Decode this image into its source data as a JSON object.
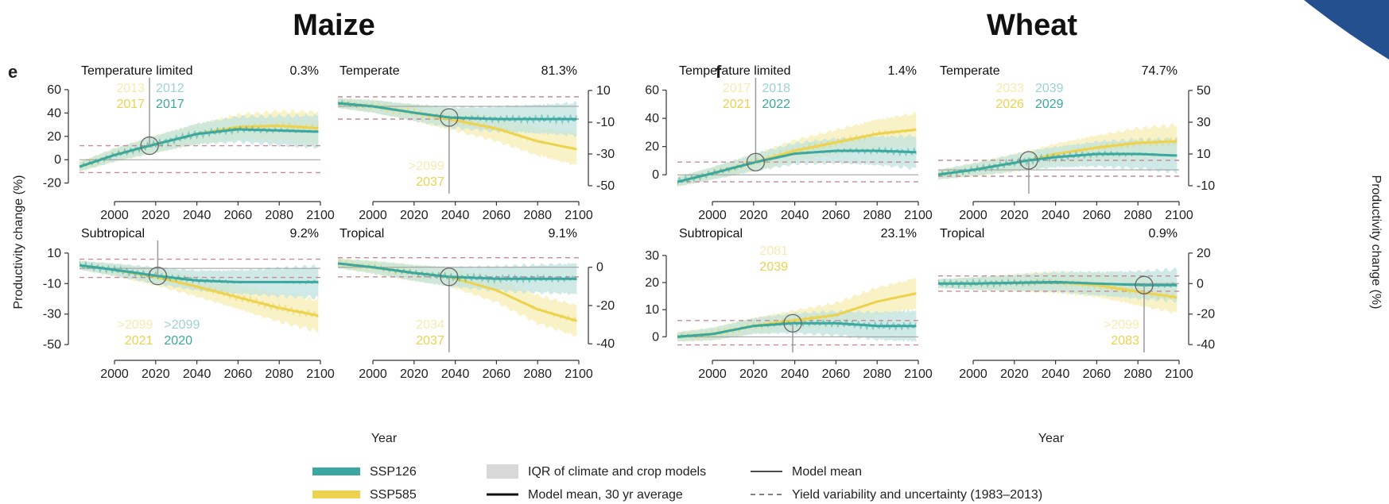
{
  "headings": {
    "maize": "Maize",
    "wheat": "Wheat"
  },
  "panel_letters": {
    "maize": "e",
    "wheat": "f"
  },
  "axis": {
    "ylabel_left": "Productivity change (%)",
    "ylabel_right": "Productivity change (%)",
    "xlabel": "Year"
  },
  "legend": {
    "ssp126": "SSP126",
    "ssp585": "SSP585",
    "iqr": "IQR of climate and crop models",
    "mean30": "Model mean, 30 yr average",
    "mean": "Model mean",
    "variability": "Yield variability and uncertainty (1983–2013)"
  },
  "colors": {
    "ssp126": "#3aa8a0",
    "ssp585": "#ecd24e",
    "ssp126_fill": "#bfe3dd",
    "ssp585_fill": "#f7edb4",
    "iqr": "#d8d8d8",
    "dashed": "#c48c95",
    "corner_shape": "#24508f"
  },
  "chart_data": [
    {
      "type": "line",
      "crop": "Maize",
      "zone": "Temperature limited",
      "share": "0.3%",
      "x_ticks": [
        "2000",
        "2020",
        "2040",
        "2060",
        "2080",
        "2100"
      ],
      "y_ticks": [
        "-20",
        "0",
        "20",
        "40",
        "60"
      ],
      "y_side": "left",
      "xlim": [
        1983,
        2100
      ],
      "ylim": [
        -25,
        62
      ],
      "var_band": [
        -11,
        12
      ],
      "emergence": {
        "ssp585_faint": "2013",
        "ssp126_faint": "2012",
        "ssp585": "2017",
        "ssp126": "2017",
        "circle_year": 2017
      },
      "series": [
        {
          "name": "SSP126",
          "x": [
            1983,
            2000,
            2017,
            2040,
            2060,
            2080,
            2099
          ],
          "y": [
            -6,
            4,
            12,
            22,
            26,
            25,
            24
          ]
        },
        {
          "name": "SSP585",
          "x": [
            1983,
            2000,
            2017,
            2040,
            2060,
            2080,
            2099
          ],
          "y": [
            -6,
            4,
            12,
            22,
            28,
            29,
            27
          ]
        }
      ]
    },
    {
      "type": "line",
      "crop": "Maize",
      "zone": "Temperate",
      "share": "81.3%",
      "x_ticks": [
        "2000",
        "2020",
        "2040",
        "2060",
        "2080",
        "2100"
      ],
      "y_ticks": [
        "-50",
        "-30",
        "-10",
        "10"
      ],
      "y_side": "right",
      "xlim": [
        1983,
        2100
      ],
      "ylim": [
        -52,
        12
      ],
      "var_band": [
        -8,
        6
      ],
      "emergence": {
        "ssp585_faint": ">2099",
        "ssp126_faint": "",
        "ssp585": "2037",
        "ssp126": "",
        "circle_year": 2037
      },
      "series": [
        {
          "name": "SSP126",
          "x": [
            1983,
            2000,
            2020,
            2037,
            2060,
            2080,
            2099
          ],
          "y": [
            2,
            0,
            -4,
            -7,
            -8,
            -8,
            -8
          ]
        },
        {
          "name": "SSP585",
          "x": [
            1983,
            2000,
            2020,
            2037,
            2060,
            2080,
            2099
          ],
          "y": [
            2,
            0,
            -4,
            -8,
            -14,
            -22,
            -27
          ]
        }
      ]
    },
    {
      "type": "line",
      "crop": "Maize",
      "zone": "Subtropical",
      "share": "9.2%",
      "x_ticks": [
        "2000",
        "2020",
        "2040",
        "2060",
        "2080",
        "2100"
      ],
      "y_ticks": [
        "-50",
        "-30",
        "-10",
        "10"
      ],
      "y_side": "left",
      "xlim": [
        1983,
        2100
      ],
      "ylim": [
        -52,
        12
      ],
      "var_band": [
        -6,
        6
      ],
      "emergence": {
        "ssp585_faint": ">2099",
        "ssp126_faint": ">2099",
        "ssp585": "2021",
        "ssp126": "2020",
        "circle_year": 2021
      },
      "series": [
        {
          "name": "SSP126",
          "x": [
            1983,
            2000,
            2021,
            2040,
            2060,
            2080,
            2099
          ],
          "y": [
            2,
            -1,
            -5,
            -8,
            -9,
            -9,
            -9
          ]
        },
        {
          "name": "SSP585",
          "x": [
            1983,
            2000,
            2021,
            2040,
            2060,
            2080,
            2099
          ],
          "y": [
            2,
            -1,
            -6,
            -12,
            -19,
            -26,
            -31
          ]
        }
      ]
    },
    {
      "type": "line",
      "crop": "Maize",
      "zone": "Tropical",
      "share": "9.1%",
      "x_ticks": [
        "2000",
        "2020",
        "2040",
        "2060",
        "2080",
        "2100"
      ],
      "y_ticks": [
        "-40",
        "-20",
        "0"
      ],
      "y_side": "right",
      "xlim": [
        1983,
        2100
      ],
      "ylim": [
        -42,
        9
      ],
      "var_band": [
        -5,
        5
      ],
      "emergence": {
        "ssp585_faint": "2034",
        "ssp126_faint": "",
        "ssp585": "2037",
        "ssp126": "",
        "circle_year": 2037
      },
      "series": [
        {
          "name": "SSP126",
          "x": [
            1983,
            2000,
            2020,
            2037,
            2060,
            2080,
            2099
          ],
          "y": [
            2,
            0,
            -3,
            -5,
            -6,
            -6,
            -6
          ]
        },
        {
          "name": "SSP585",
          "x": [
            1983,
            2000,
            2020,
            2037,
            2060,
            2080,
            2099
          ],
          "y": [
            2,
            0,
            -3,
            -5,
            -12,
            -22,
            -28
          ]
        }
      ]
    },
    {
      "type": "line",
      "crop": "Wheat",
      "zone": "Temperature limited",
      "share": "1.4%",
      "x_ticks": [
        "2000",
        "2020",
        "2040",
        "2060",
        "2080",
        "2100"
      ],
      "y_ticks": [
        "0",
        "20",
        "40",
        "60"
      ],
      "y_side": "left",
      "xlim": [
        1983,
        2100
      ],
      "ylim": [
        -10,
        62
      ],
      "var_band": [
        -5,
        9
      ],
      "emergence": {
        "ssp585_faint": "2017",
        "ssp126_faint": "2018",
        "ssp585": "2021",
        "ssp126": "2022",
        "circle_year": 2021
      },
      "series": [
        {
          "name": "SSP126",
          "x": [
            1983,
            2000,
            2021,
            2040,
            2060,
            2080,
            2099
          ],
          "y": [
            -5,
            1,
            9,
            15,
            17,
            17,
            16
          ]
        },
        {
          "name": "SSP585",
          "x": [
            1983,
            2000,
            2021,
            2040,
            2060,
            2080,
            2099
          ],
          "y": [
            -5,
            1,
            9,
            17,
            23,
            29,
            32
          ]
        }
      ]
    },
    {
      "type": "line",
      "crop": "Wheat",
      "zone": "Temperate",
      "share": "74.7%",
      "x_ticks": [
        "2000",
        "2020",
        "2040",
        "2060",
        "2080",
        "2100"
      ],
      "y_ticks": [
        "-10",
        "10",
        "30",
        "50"
      ],
      "y_side": "right",
      "xlim": [
        1983,
        2100
      ],
      "ylim": [
        -12,
        52
      ],
      "var_band": [
        -4,
        6
      ],
      "emergence": {
        "ssp585_faint": "2033",
        "ssp126_faint": "2039",
        "ssp585": "2026",
        "ssp126": "2029",
        "circle_year": 2027
      },
      "series": [
        {
          "name": "SSP126",
          "x": [
            1983,
            2000,
            2027,
            2040,
            2060,
            2080,
            2099
          ],
          "y": [
            -3,
            0,
            6,
            8,
            10,
            10,
            9
          ]
        },
        {
          "name": "SSP585",
          "x": [
            1983,
            2000,
            2027,
            2040,
            2060,
            2080,
            2099
          ],
          "y": [
            -3,
            0,
            6,
            10,
            14,
            17,
            18
          ]
        }
      ]
    },
    {
      "type": "line",
      "crop": "Wheat",
      "zone": "Subtropical",
      "share": "23.1%",
      "x_ticks": [
        "2000",
        "2020",
        "2040",
        "2060",
        "2080",
        "2100"
      ],
      "y_ticks": [
        "0",
        "10",
        "20",
        "30"
      ],
      "y_side": "left",
      "xlim": [
        1983,
        2100
      ],
      "ylim": [
        -4,
        32
      ],
      "var_band": [
        -3,
        6
      ],
      "emergence": {
        "ssp585_faint": "2081",
        "ssp126_faint": "",
        "ssp585": "2039",
        "ssp126": "",
        "circle_year": 2039
      },
      "series": [
        {
          "name": "SSP126",
          "x": [
            1983,
            2000,
            2020,
            2039,
            2060,
            2080,
            2099
          ],
          "y": [
            0,
            1,
            4,
            5,
            5,
            4,
            4
          ]
        },
        {
          "name": "SSP585",
          "x": [
            1983,
            2000,
            2020,
            2039,
            2060,
            2080,
            2099
          ],
          "y": [
            0,
            1,
            4,
            6,
            8,
            13,
            16
          ]
        }
      ]
    },
    {
      "type": "line",
      "crop": "Wheat",
      "zone": "Tropical",
      "share": "0.9%",
      "x_ticks": [
        "2000",
        "2020",
        "2040",
        "2060",
        "2080",
        "2100"
      ],
      "y_ticks": [
        "-40",
        "-20",
        "0",
        "20"
      ],
      "y_side": "right",
      "xlim": [
        1983,
        2100
      ],
      "ylim": [
        -42,
        22
      ],
      "var_band": [
        -5,
        5
      ],
      "emergence": {
        "ssp585_faint": ">2099",
        "ssp126_faint": "",
        "ssp585": "2083",
        "ssp126": "",
        "circle_year": 2083
      },
      "series": [
        {
          "name": "SSP126",
          "x": [
            1983,
            2000,
            2040,
            2060,
            2083,
            2099
          ],
          "y": [
            0,
            0,
            1,
            0,
            -1,
            -1
          ]
        },
        {
          "name": "SSP585",
          "x": [
            1983,
            2000,
            2040,
            2060,
            2083,
            2099
          ],
          "y": [
            0,
            0,
            1,
            -1,
            -6,
            -9
          ]
        }
      ]
    }
  ]
}
